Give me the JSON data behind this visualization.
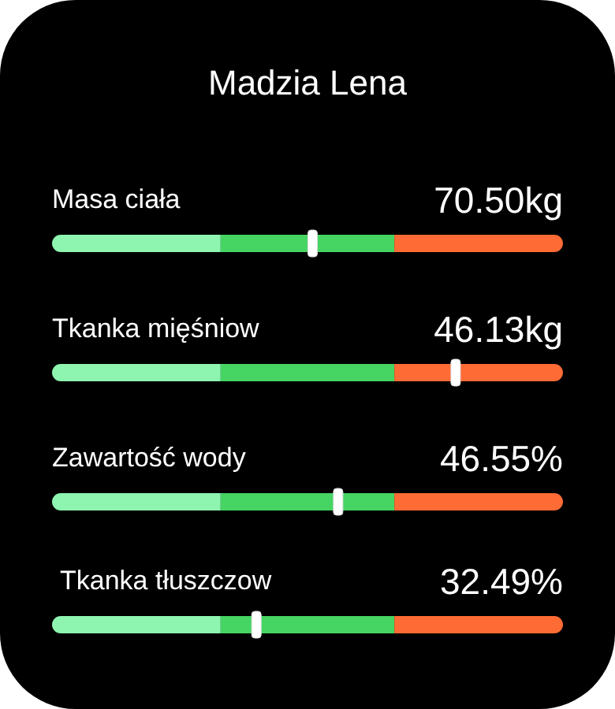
{
  "chart_data": {
    "type": "other",
    "title": "Madzia Lena",
    "categories": [
      "Masa ciała",
      "Tkanka mięśniow",
      "Zawartość wody",
      "Tkanka tłuszczow"
    ],
    "values": [
      70.5,
      46.13,
      46.55,
      32.49
    ],
    "value_labels": [
      "70.50kg",
      "46.13kg",
      "46.55%",
      "32.49%"
    ]
  }
}
